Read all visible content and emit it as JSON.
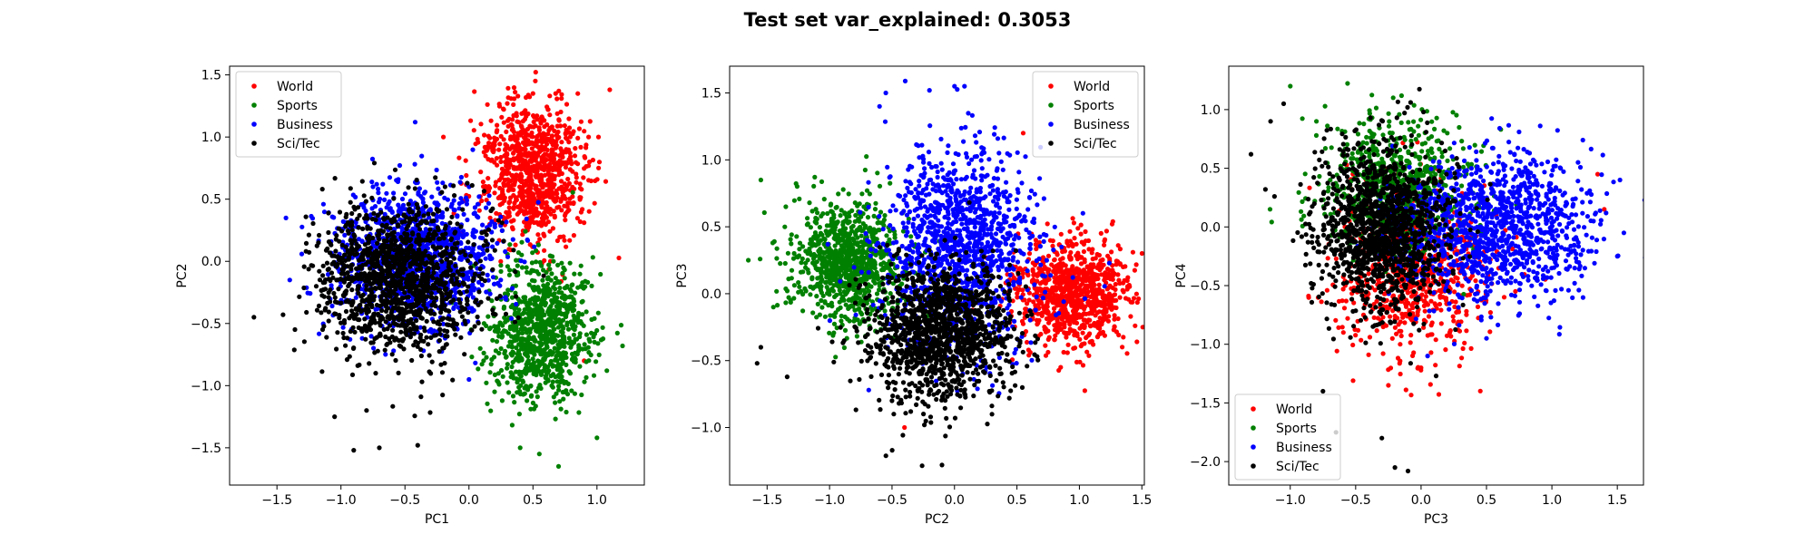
{
  "title": "Test set var_explained: 0.3053",
  "chart_data": [
    {
      "type": "scatter",
      "xlabel": "PC1",
      "ylabel": "PC2",
      "xlim": [
        -1.87,
        1.37
      ],
      "ylim": [
        -1.8,
        1.57
      ],
      "xticks": [
        -1.5,
        -1.0,
        -0.5,
        0.0,
        0.5,
        1.0
      ],
      "yticks": [
        -1.5,
        -1.0,
        -0.5,
        0.0,
        0.5,
        1.0,
        1.5
      ],
      "legend": "upper left",
      "series": [
        {
          "name": "World",
          "color": "#ff0000",
          "n": 900,
          "clusters": [
            {
              "cx": 0.5,
              "cy": 0.72,
              "sx": 0.2,
              "sy": 0.28,
              "w": 1
            }
          ],
          "extras": [
            [
              1.1,
              1.38
            ],
            [
              0.85,
              1.35
            ],
            [
              0.2,
              0.55
            ],
            [
              0.9,
              -0.8
            ],
            [
              -0.2,
              1.0
            ]
          ]
        },
        {
          "name": "Sports",
          "color": "#008000",
          "n": 900,
          "clusters": [
            {
              "cx": 0.55,
              "cy": -0.55,
              "sx": 0.2,
              "sy": 0.28,
              "w": 1
            }
          ],
          "extras": [
            [
              1.2,
              -0.68
            ],
            [
              0.55,
              -1.55
            ],
            [
              0.7,
              -1.65
            ],
            [
              0.4,
              -1.5
            ],
            [
              1.0,
              -1.42
            ]
          ]
        },
        {
          "name": "Business",
          "color": "#0000ff",
          "n": 1200,
          "clusters": [
            {
              "cx": -0.4,
              "cy": 0.05,
              "sx": 0.32,
              "sy": 0.28,
              "w": 1
            }
          ],
          "extras": [
            [
              -0.42,
              1.12
            ],
            [
              -0.6,
              0.4
            ],
            [
              0.0,
              -0.95
            ],
            [
              -1.4,
              -0.15
            ],
            [
              -0.75,
              0.6
            ]
          ]
        },
        {
          "name": "Sci/Tec",
          "color": "#000000",
          "n": 1300,
          "clusters": [
            {
              "cx": -0.55,
              "cy": -0.12,
              "sx": 0.32,
              "sy": 0.3,
              "w": 1
            }
          ],
          "extras": [
            [
              -1.68,
              -0.45
            ],
            [
              -0.9,
              -1.52
            ],
            [
              -0.7,
              -1.5
            ],
            [
              -0.4,
              -1.48
            ],
            [
              -1.05,
              -1.25
            ],
            [
              -0.8,
              -1.2
            ]
          ]
        }
      ]
    },
    {
      "type": "scatter",
      "xlabel": "PC2",
      "ylabel": "PC3",
      "xlim": [
        -1.8,
        1.52
      ],
      "ylim": [
        -1.43,
        1.7
      ],
      "xticks": [
        -1.5,
        -1.0,
        -0.5,
        0.0,
        0.5,
        1.0,
        1.5
      ],
      "yticks": [
        -1.0,
        -0.5,
        0.0,
        0.5,
        1.0,
        1.5
      ],
      "legend": "upper right",
      "series": [
        {
          "name": "World",
          "color": "#ff0000",
          "n": 900,
          "clusters": [
            {
              "cx": 0.95,
              "cy": 0.0,
              "sx": 0.22,
              "sy": 0.2,
              "w": 1
            }
          ],
          "extras": [
            [
              0.55,
              1.2
            ],
            [
              1.35,
              0.2
            ],
            [
              0.85,
              -0.55
            ],
            [
              -0.4,
              -1.0
            ]
          ]
        },
        {
          "name": "Sports",
          "color": "#008000",
          "n": 900,
          "clusters": [
            {
              "cx": -0.85,
              "cy": 0.25,
              "sx": 0.22,
              "sy": 0.22,
              "w": 1
            }
          ],
          "extras": [
            [
              -1.55,
              0.85
            ],
            [
              -1.65,
              0.25
            ],
            [
              -1.45,
              -0.1
            ],
            [
              -1.35,
              0.65
            ]
          ]
        },
        {
          "name": "Business",
          "color": "#0000ff",
          "n": 1200,
          "clusters": [
            {
              "cx": 0.05,
              "cy": 0.35,
              "sx": 0.3,
              "sy": 0.38,
              "w": 1
            }
          ],
          "extras": [
            [
              0.0,
              1.55
            ],
            [
              -0.2,
              1.52
            ],
            [
              -0.55,
              1.5
            ],
            [
              0.08,
              1.55
            ],
            [
              -0.6,
              1.4
            ]
          ]
        },
        {
          "name": "Sci/Tec",
          "color": "#000000",
          "n": 1300,
          "clusters": [
            {
              "cx": -0.1,
              "cy": -0.3,
              "sx": 0.28,
              "sy": 0.25,
              "w": 1
            }
          ],
          "extras": [
            [
              -1.55,
              -0.4
            ],
            [
              -1.58,
              -0.52
            ],
            [
              -0.1,
              -1.28
            ],
            [
              -0.5,
              -0.8
            ],
            [
              0.3,
              -0.9
            ]
          ]
        }
      ]
    },
    {
      "type": "scatter",
      "xlabel": "PC3",
      "ylabel": "PC4",
      "xlim": [
        -1.47,
        1.7
      ],
      "ylim": [
        -2.2,
        1.37
      ],
      "xticks": [
        -1.0,
        -0.5,
        0.0,
        0.5,
        1.0,
        1.5
      ],
      "yticks": [
        -2.0,
        -1.5,
        -1.0,
        -0.5,
        0.0,
        0.5,
        1.0
      ],
      "legend": "lower left",
      "series": [
        {
          "name": "World",
          "color": "#ff0000",
          "n": 700,
          "clusters": [
            {
              "cx": -0.05,
              "cy": -0.4,
              "sx": 0.3,
              "sy": 0.35,
              "w": 1
            }
          ],
          "extras": [
            [
              1.35,
              0.45
            ],
            [
              1.4,
              0.15
            ],
            [
              -0.25,
              -1.35
            ],
            [
              0.0,
              -1.2
            ]
          ]
        },
        {
          "name": "Sports",
          "color": "#008000",
          "n": 700,
          "clusters": [
            {
              "cx": -0.2,
              "cy": 0.35,
              "sx": 0.28,
              "sy": 0.28,
              "w": 1
            }
          ],
          "extras": [
            [
              -1.0,
              1.2
            ],
            [
              -0.8,
              0.9
            ],
            [
              0.2,
              0.8
            ],
            [
              0.4,
              -0.1
            ]
          ]
        },
        {
          "name": "Business",
          "color": "#0000ff",
          "n": 1200,
          "clusters": [
            {
              "cx": 0.55,
              "cy": 0.0,
              "sx": 0.38,
              "sy": 0.3,
              "w": 1
            }
          ],
          "extras": [
            [
              1.52,
              0.4
            ],
            [
              1.55,
              -0.05
            ],
            [
              1.2,
              0.55
            ],
            [
              0.05,
              -1.1
            ],
            [
              0.5,
              -0.95
            ]
          ]
        },
        {
          "name": "Sci/Tec",
          "color": "#000000",
          "n": 1300,
          "clusters": [
            {
              "cx": -0.3,
              "cy": 0.0,
              "sx": 0.25,
              "sy": 0.35,
              "w": 1
            }
          ],
          "extras": [
            [
              -1.3,
              0.62
            ],
            [
              -1.15,
              0.9
            ],
            [
              -1.05,
              1.05
            ],
            [
              -0.75,
              -1.4
            ],
            [
              -0.65,
              -1.75
            ],
            [
              -0.2,
              -2.05
            ],
            [
              -0.1,
              -2.08
            ],
            [
              -0.3,
              -1.8
            ]
          ]
        }
      ]
    }
  ]
}
